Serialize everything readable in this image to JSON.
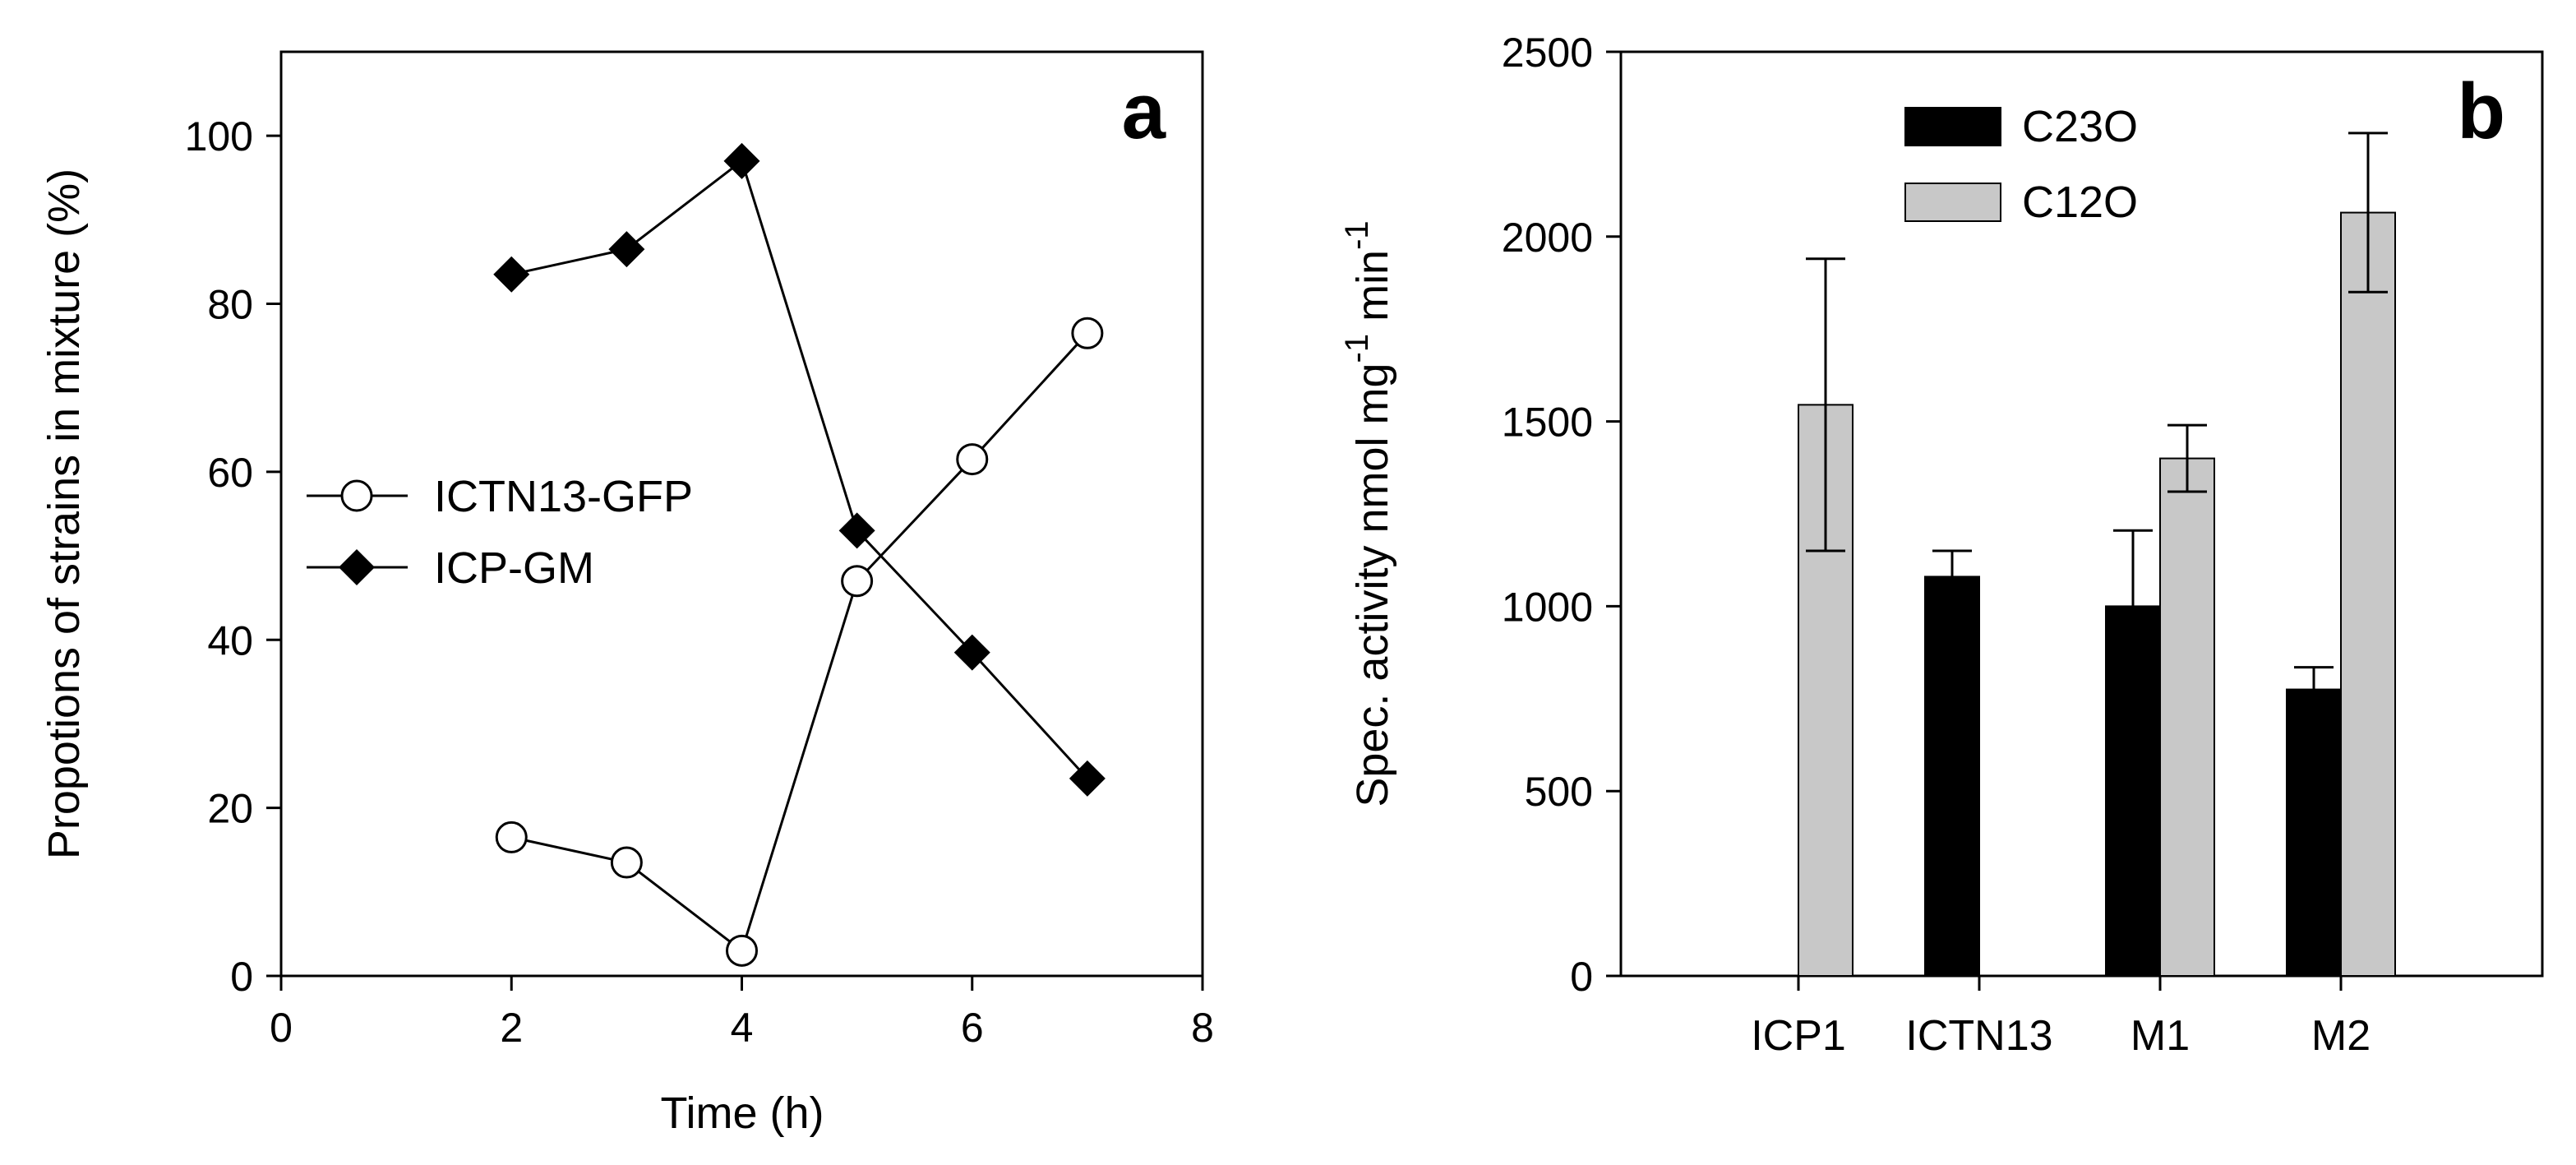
{
  "chart_data": [
    {
      "type": "line",
      "panel_label": "a",
      "xlabel": "Time (h)",
      "ylabel": "Propotions of strains in mixture (%)",
      "xlim": [
        0,
        8
      ],
      "ylim": [
        0,
        110
      ],
      "xticks": [
        "0",
        "2",
        "4",
        "6",
        "8"
      ],
      "yticks": [
        "0",
        "20",
        "40",
        "60",
        "80",
        "100"
      ],
      "legend_position": "middle-left",
      "series": [
        {
          "name": "ICTN13-GFP",
          "marker": "open-circle",
          "x": [
            2,
            3,
            4,
            5,
            6,
            7
          ],
          "y": [
            16.5,
            13.5,
            3,
            47,
            61.5,
            76.5
          ]
        },
        {
          "name": "ICP-GM",
          "marker": "filled-diamond",
          "x": [
            2,
            3,
            4,
            5,
            6,
            7
          ],
          "y": [
            83.5,
            86.5,
            97,
            53,
            38.5,
            23.5
          ]
        }
      ]
    },
    {
      "type": "bar",
      "panel_label": "b",
      "ylabel_main": "Spec. activity nmol mg",
      "ylabel_sup1": "-1",
      "ylabel_mid": " min",
      "ylabel_sup2": "-1",
      "ylim": [
        0,
        2500
      ],
      "yticks": [
        "0",
        "500",
        "1000",
        "1500",
        "2000",
        "2500"
      ],
      "categories": [
        "ICP1",
        "ICTN13",
        "M1",
        "M2"
      ],
      "legend_position": "top-center",
      "series": [
        {
          "name": "C23O",
          "color": "#000000",
          "values": [
            null,
            1080,
            1000,
            775
          ],
          "errors": [
            null,
            70,
            205,
            60
          ]
        },
        {
          "name": "C12O",
          "color": "#c8c8c8",
          "values": [
            1545,
            null,
            1400,
            2065
          ],
          "errors": [
            395,
            null,
            90,
            215
          ]
        }
      ]
    }
  ]
}
